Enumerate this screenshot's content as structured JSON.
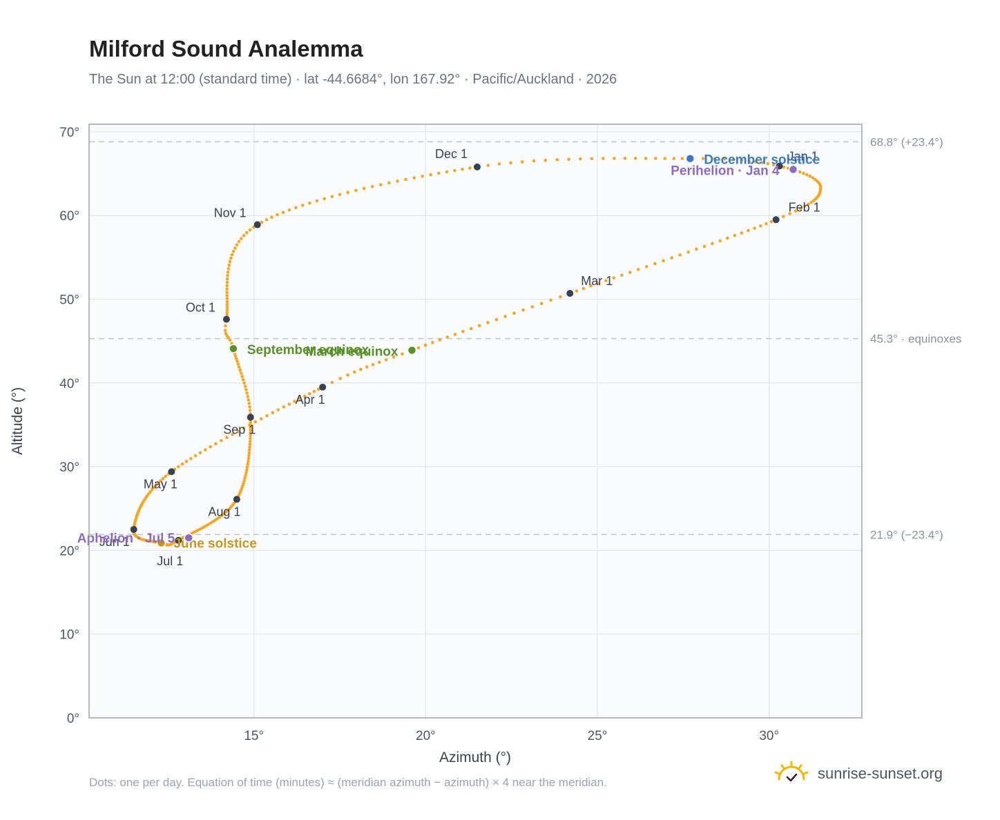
{
  "title": "Milford Sound Analemma",
  "subtitle": "The Sun at 12:00 (standard time) · lat -44.6684°, lon 167.92° · Pacific/Auckland · 2026",
  "footnote": "Dots: one per day. Equation of time (minutes) ≈ (meridian azimuth − azimuth) × 4 near the meridian.",
  "brand": "sunrise-sunset.org",
  "colors": {
    "curve": "#f5a623",
    "month_marker": "#374151",
    "equinox": "#5a8f29",
    "june_solstice": "#c8961a",
    "december_solstice": "#3a7ac0",
    "apsis": "#8e6bbf",
    "reference_line": "#c4c9d0",
    "plot_bg": "#f9fbfd"
  },
  "chart_data": {
    "type": "scatter",
    "xlabel": "Azimuth (°)",
    "ylabel": "Altitude (°)",
    "xlim": [
      10.2,
      32.7
    ],
    "ylim": [
      0,
      70.9
    ],
    "xticks": [
      15,
      20,
      25,
      30
    ],
    "xtick_labels": [
      "15°",
      "20°",
      "25°",
      "30°"
    ],
    "yticks": [
      0,
      10,
      20,
      30,
      40,
      50,
      60,
      70
    ],
    "ytick_labels": [
      "0°",
      "10°",
      "20°",
      "30°",
      "40°",
      "50°",
      "60°",
      "70°"
    ],
    "grid": true,
    "reference_lines": [
      {
        "y": 68.8,
        "label": "68.8° (+23.4°)"
      },
      {
        "y": 45.3,
        "label": "45.3° · equinoxes"
      },
      {
        "y": 21.9,
        "label": "21.9° (−23.4°)"
      }
    ],
    "month_markers": [
      {
        "label": "Jan 1",
        "az": 30.3,
        "alt": 65.9
      },
      {
        "label": "Feb 1",
        "az": 30.2,
        "alt": 59.5
      },
      {
        "label": "Mar 1",
        "az": 24.2,
        "alt": 50.7
      },
      {
        "label": "Apr 1",
        "az": 17.0,
        "alt": 39.5
      },
      {
        "label": "May 1",
        "az": 12.6,
        "alt": 29.4
      },
      {
        "label": "Jun 1",
        "az": 11.5,
        "alt": 22.5
      },
      {
        "label": "Jul 1",
        "az": 12.8,
        "alt": 21.2
      },
      {
        "label": "Aug 1",
        "az": 14.5,
        "alt": 26.1
      },
      {
        "label": "Sep 1",
        "az": 14.9,
        "alt": 35.9
      },
      {
        "label": "Oct 1",
        "az": 14.2,
        "alt": 47.6
      },
      {
        "label": "Nov 1",
        "az": 15.1,
        "alt": 58.9
      },
      {
        "label": "Dec 1",
        "az": 21.5,
        "alt": 65.8
      }
    ],
    "events": [
      {
        "label": "March equinox",
        "az": 19.6,
        "alt": 43.9,
        "kind": "equinox"
      },
      {
        "label": "June solstice",
        "az": 12.3,
        "alt": 20.9,
        "kind": "june_solstice"
      },
      {
        "label": "September equinox",
        "az": 14.4,
        "alt": 44.1,
        "kind": "equinox"
      },
      {
        "label": "December solstice",
        "az": 27.7,
        "alt": 66.8,
        "kind": "december_solstice"
      },
      {
        "label": "Perihelion · Jan 4",
        "az": 30.7,
        "alt": 65.5,
        "kind": "apsis"
      },
      {
        "label": "Aphelion · Jul 5",
        "az": 13.1,
        "alt": 21.5,
        "kind": "apsis"
      }
    ],
    "curve_keypoints": [
      {
        "day": 0,
        "az": 30.3,
        "alt": 65.9
      },
      {
        "day": 15,
        "az": 31.5,
        "alt": 63.3
      },
      {
        "day": 31,
        "az": 30.2,
        "alt": 59.5
      },
      {
        "day": 59,
        "az": 24.2,
        "alt": 50.7
      },
      {
        "day": 78,
        "az": 19.6,
        "alt": 43.9
      },
      {
        "day": 90,
        "az": 17.0,
        "alt": 39.5
      },
      {
        "day": 120,
        "az": 12.6,
        "alt": 29.4
      },
      {
        "day": 151,
        "az": 11.5,
        "alt": 22.5
      },
      {
        "day": 171,
        "az": 12.3,
        "alt": 20.9
      },
      {
        "day": 181,
        "az": 12.8,
        "alt": 21.2
      },
      {
        "day": 212,
        "az": 14.5,
        "alt": 26.1
      },
      {
        "day": 243,
        "az": 14.9,
        "alt": 35.9
      },
      {
        "day": 265,
        "az": 14.4,
        "alt": 44.1
      },
      {
        "day": 273,
        "az": 14.2,
        "alt": 47.6
      },
      {
        "day": 304,
        "az": 15.1,
        "alt": 58.9
      },
      {
        "day": 334,
        "az": 21.5,
        "alt": 65.8
      },
      {
        "day": 354,
        "az": 27.7,
        "alt": 66.8
      },
      {
        "day": 365,
        "az": 30.3,
        "alt": 65.9
      }
    ]
  }
}
